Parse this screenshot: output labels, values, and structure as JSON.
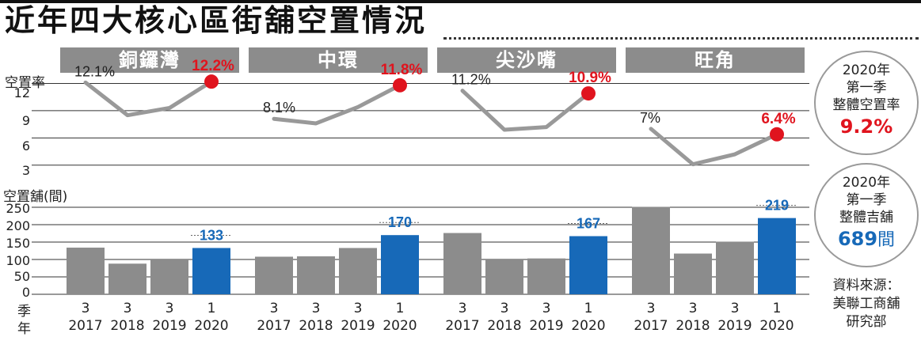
{
  "title": "近年四大核心區街舖空置情況",
  "chart_data": {
    "type": "line+bar",
    "panels": [
      "銅鑼灣",
      "中環",
      "尖沙嘴",
      "旺角"
    ],
    "x_quarters": [
      "3",
      "3",
      "3",
      "1"
    ],
    "x_years": [
      "2017",
      "2018",
      "2019",
      "2020"
    ],
    "vacancy_rate": {
      "ylabel": "空置率",
      "ticks": [
        "12",
        "9",
        "6",
        "3"
      ],
      "ylim": [
        1.5,
        13
      ],
      "series": [
        {
          "name": "銅鑼灣",
          "values": [
            12.1,
            8.5,
            9.3,
            12.2
          ],
          "start_label": "12.1%",
          "end_label": "12.2%"
        },
        {
          "name": "中環",
          "values": [
            8.1,
            7.6,
            9.4,
            11.8
          ],
          "start_label": "8.1%",
          "end_label": "11.8%"
        },
        {
          "name": "尖沙嘴",
          "values": [
            11.2,
            6.9,
            7.2,
            10.9
          ],
          "start_label": "11.2%",
          "end_label": "10.9%"
        },
        {
          "name": "旺角",
          "values": [
            7,
            3.1,
            4.2,
            6.4
          ],
          "start_label": "7%",
          "end_label": "6.4%"
        }
      ]
    },
    "vacant_shops": {
      "ylabel": "空置舖(間)",
      "ticks": [
        "250",
        "200",
        "150",
        "100",
        "50",
        "0"
      ],
      "ylim": [
        0,
        250
      ],
      "series": [
        {
          "name": "銅鑼灣",
          "values": [
            134,
            88,
            102,
            133
          ],
          "end_label": "133"
        },
        {
          "name": "中環",
          "values": [
            108,
            109,
            133,
            170
          ],
          "end_label": "170"
        },
        {
          "name": "尖沙嘴",
          "values": [
            176,
            102,
            103,
            167
          ],
          "end_label": "167"
        },
        {
          "name": "旺角",
          "values": [
            251,
            117,
            151,
            219
          ],
          "end_label": "219"
        }
      ]
    },
    "x_axis_label_top": "季",
    "x_axis_label_bottom": "年"
  },
  "sidebar": {
    "rate_box": {
      "line1": "2020年",
      "line2": "第一季",
      "line3": "整體空置率",
      "value": "9.2%"
    },
    "shops_box": {
      "line1": "2020年",
      "line2": "第一季",
      "line3": "整體吉舖",
      "value": "689",
      "unit": "間"
    },
    "source": {
      "line1": "資料來源：",
      "line2": "美聯工商舖",
      "line3": "研究部"
    }
  },
  "colors": {
    "gray_bar": "#8c8c8c",
    "blue_bar": "#1769b8",
    "line_gray": "#999999",
    "red": "#e0141e",
    "grid": "#333333"
  }
}
